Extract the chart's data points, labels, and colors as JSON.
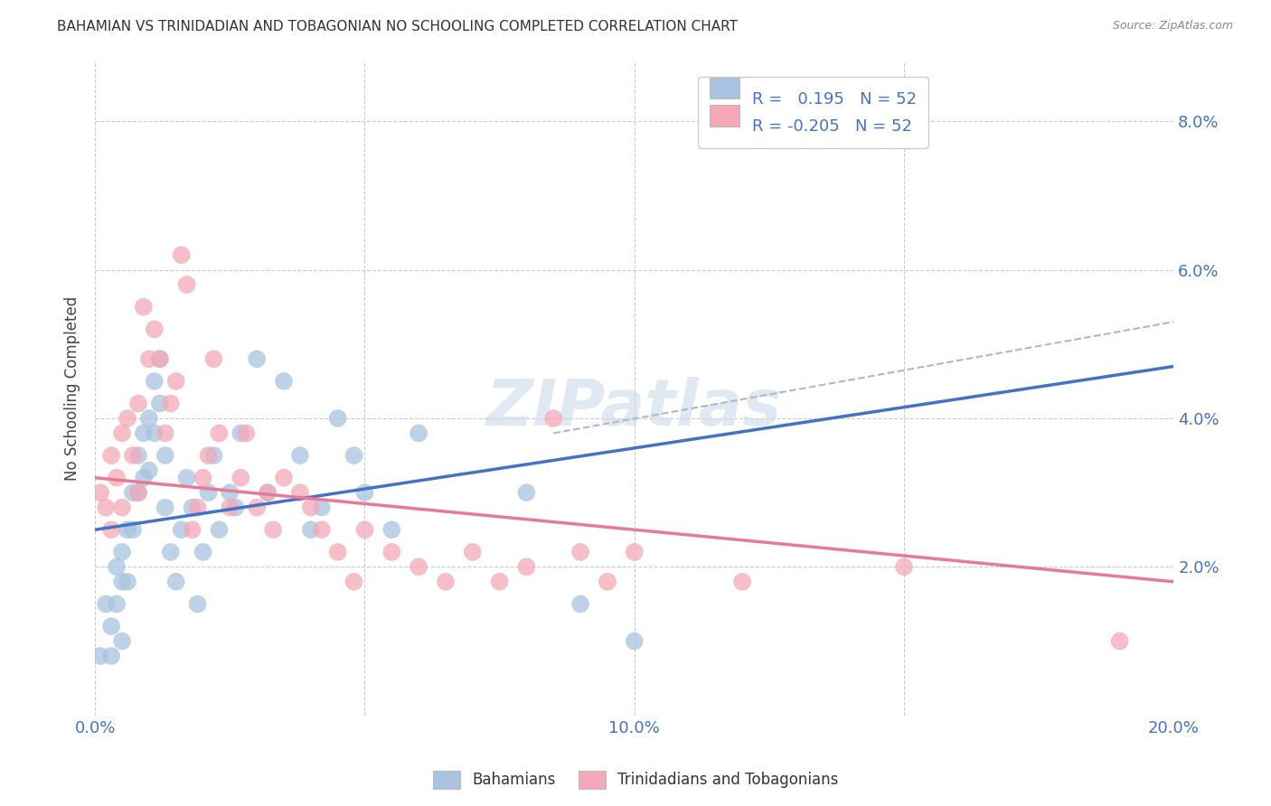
{
  "title": "BAHAMIAN VS TRINIDADIAN AND TOBAGONIAN NO SCHOOLING COMPLETED CORRELATION CHART",
  "source": "Source: ZipAtlas.com",
  "ylabel": "No Schooling Completed",
  "xlim": [
    0.0,
    0.2
  ],
  "ylim": [
    0.0,
    0.088
  ],
  "xticks": [
    0.0,
    0.05,
    0.1,
    0.15,
    0.2
  ],
  "xtick_labels": [
    "0.0%",
    "",
    "10.0%",
    "",
    "20.0%"
  ],
  "yticks": [
    0.0,
    0.02,
    0.04,
    0.06,
    0.08
  ],
  "ytick_labels": [
    "",
    "2.0%",
    "4.0%",
    "6.0%",
    "8.0%"
  ],
  "bahamian_color": "#a8c4e0",
  "trinidadian_color": "#f4a8b8",
  "blue_line_color": "#4472c4",
  "pink_line_color": "#e87a96",
  "dashed_line_color": "#b0b8c8",
  "R_bahamian": 0.195,
  "R_trinidadian": -0.205,
  "N_bahamian": 52,
  "N_trinidadian": 52,
  "legend_label_bahamian": "Bahamians",
  "legend_label_trinidadian": "Trinidadians and Tobagonians",
  "blue_line": [
    0.0,
    0.025,
    0.2,
    0.047
  ],
  "pink_line": [
    0.0,
    0.032,
    0.2,
    0.018
  ],
  "dash_line": [
    0.085,
    0.038,
    0.2,
    0.053
  ],
  "bahamian_x": [
    0.001,
    0.002,
    0.003,
    0.003,
    0.004,
    0.004,
    0.005,
    0.005,
    0.005,
    0.006,
    0.006,
    0.007,
    0.007,
    0.008,
    0.008,
    0.009,
    0.009,
    0.01,
    0.01,
    0.011,
    0.011,
    0.012,
    0.012,
    0.013,
    0.013,
    0.014,
    0.015,
    0.016,
    0.017,
    0.018,
    0.019,
    0.02,
    0.021,
    0.022,
    0.023,
    0.025,
    0.026,
    0.027,
    0.03,
    0.032,
    0.035,
    0.038,
    0.04,
    0.042,
    0.045,
    0.048,
    0.05,
    0.055,
    0.06,
    0.08,
    0.09,
    0.1
  ],
  "bahamian_y": [
    0.008,
    0.015,
    0.012,
    0.008,
    0.02,
    0.015,
    0.022,
    0.018,
    0.01,
    0.025,
    0.018,
    0.03,
    0.025,
    0.035,
    0.03,
    0.038,
    0.032,
    0.04,
    0.033,
    0.045,
    0.038,
    0.042,
    0.048,
    0.035,
    0.028,
    0.022,
    0.018,
    0.025,
    0.032,
    0.028,
    0.015,
    0.022,
    0.03,
    0.035,
    0.025,
    0.03,
    0.028,
    0.038,
    0.048,
    0.03,
    0.045,
    0.035,
    0.025,
    0.028,
    0.04,
    0.035,
    0.03,
    0.025,
    0.038,
    0.03,
    0.015,
    0.01
  ],
  "trinidadian_x": [
    0.001,
    0.002,
    0.003,
    0.003,
    0.004,
    0.005,
    0.005,
    0.006,
    0.007,
    0.008,
    0.008,
    0.009,
    0.01,
    0.011,
    0.012,
    0.013,
    0.014,
    0.015,
    0.016,
    0.017,
    0.018,
    0.019,
    0.02,
    0.021,
    0.022,
    0.023,
    0.025,
    0.027,
    0.028,
    0.03,
    0.032,
    0.033,
    0.035,
    0.038,
    0.04,
    0.042,
    0.045,
    0.048,
    0.05,
    0.055,
    0.06,
    0.065,
    0.07,
    0.075,
    0.08,
    0.085,
    0.09,
    0.095,
    0.1,
    0.12,
    0.15,
    0.19
  ],
  "trinidadian_y": [
    0.03,
    0.028,
    0.035,
    0.025,
    0.032,
    0.038,
    0.028,
    0.04,
    0.035,
    0.042,
    0.03,
    0.055,
    0.048,
    0.052,
    0.048,
    0.038,
    0.042,
    0.045,
    0.062,
    0.058,
    0.025,
    0.028,
    0.032,
    0.035,
    0.048,
    0.038,
    0.028,
    0.032,
    0.038,
    0.028,
    0.03,
    0.025,
    0.032,
    0.03,
    0.028,
    0.025,
    0.022,
    0.018,
    0.025,
    0.022,
    0.02,
    0.018,
    0.022,
    0.018,
    0.02,
    0.04,
    0.022,
    0.018,
    0.022,
    0.018,
    0.02,
    0.01
  ],
  "background_color": "#ffffff",
  "grid_color": "#cccccc"
}
